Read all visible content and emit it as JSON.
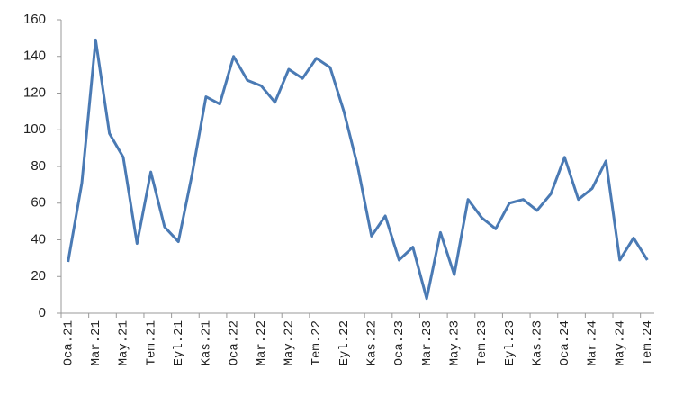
{
  "chart_data": {
    "type": "line",
    "categories": [
      "Oca.21",
      null,
      "Mar.21",
      null,
      "May.21",
      null,
      "Tem.21",
      null,
      "Eyl.21",
      null,
      "Kas.21",
      null,
      "Oca.22",
      null,
      "Mar.22",
      null,
      "May.22",
      null,
      "Tem.22",
      null,
      "Eyl.22",
      null,
      "Kas.22",
      null,
      "Oca.23",
      null,
      "Mar.23",
      null,
      "May.23",
      null,
      "Tem.23",
      null,
      "Eyl.23",
      null,
      "Kas.23",
      null,
      "Oca.24",
      null,
      "Mar.24",
      null,
      "May.24",
      null,
      "Tem.24"
    ],
    "values": [
      28,
      71,
      149,
      98,
      85,
      38,
      77,
      47,
      39,
      76,
      118,
      114,
      140,
      127,
      124,
      115,
      133,
      128,
      139,
      134,
      110,
      80,
      42,
      53,
      29,
      36,
      8,
      44,
      21,
      62,
      52,
      46,
      60,
      62,
      56,
      65,
      85,
      62,
      68,
      83,
      29,
      41,
      29
    ],
    "color": "#4a7ab4",
    "ylim": [
      0,
      160
    ],
    "yticks": [
      0,
      20,
      40,
      60,
      80,
      100,
      120,
      140,
      160
    ],
    "grid": false
  }
}
